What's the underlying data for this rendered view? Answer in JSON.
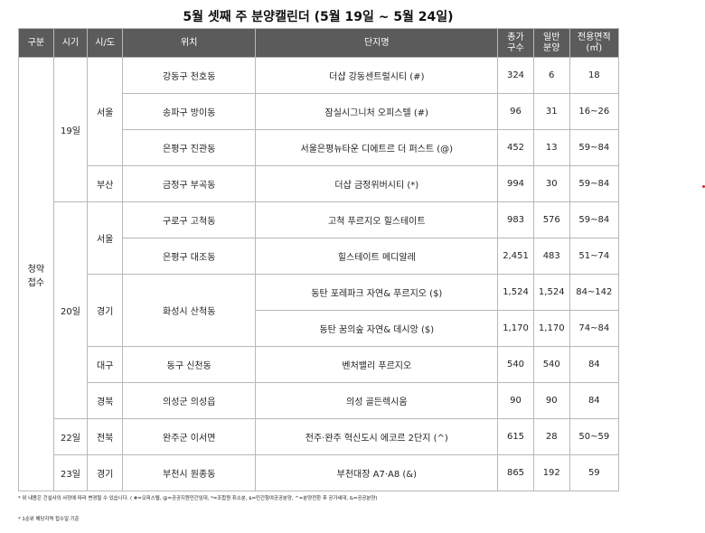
{
  "title": "5월 셋째 주 분양캘린더 (5월 19일 ~ 5월 24일)",
  "headers": {
    "category": "구분",
    "timing": "시기",
    "region": "시/도",
    "location": "위치",
    "complex": "단지명",
    "total_units": [
      "총가",
      "구수"
    ],
    "general_sale": [
      "일반",
      "분양"
    ],
    "area": [
      "전용면적",
      "(㎡)"
    ]
  },
  "category_label": [
    "청약",
    "접수"
  ],
  "timings": [
    "19일",
    "20일",
    "22일",
    "23일"
  ],
  "regions": [
    "서울",
    "부산",
    "서울",
    "경기",
    "대구",
    "경북",
    "전북",
    "경기"
  ],
  "locations": [
    "강동구 천호동",
    "송파구 방이동",
    "은평구 진관동",
    "금정구 부곡동",
    "구로구 고척동",
    "은평구 대조동",
    "화성시 산척동",
    "동구 신천동",
    "의성군 의성읍",
    "완주군 이서면",
    "부천시 원종동"
  ],
  "rows": [
    {
      "complex": "더샵 강동센트럴시티 (#)",
      "total": "324",
      "general": "6",
      "area": "18"
    },
    {
      "complex": "잠실시그니처 오피스텔 (#)",
      "total": "96",
      "general": "31",
      "area": "16~26"
    },
    {
      "complex": "서울은평뉴타운 디에트르 더 퍼스트 (@)",
      "total": "452",
      "general": "13",
      "area": "59~84"
    },
    {
      "complex": "더샵 금정위버시티 (*)",
      "total": "994",
      "general": "30",
      "area": "59~84"
    },
    {
      "complex": "고척 푸르지오 힐스테이트",
      "total": "983",
      "general": "576",
      "area": "59~84"
    },
    {
      "complex": "힐스테이트 메디알레",
      "total": "2,451",
      "general": "483",
      "area": "51~74"
    },
    {
      "complex": "동탄 포레파크 자연& 푸르지오 ($)",
      "total": "1,524",
      "general": "1,524",
      "area": "84~142"
    },
    {
      "complex": "동탄 꿈의숲 자연& 데시앙 ($)",
      "total": "1,170",
      "general": "1,170",
      "area": "74~84"
    },
    {
      "complex": "벤처밸리 푸르지오",
      "total": "540",
      "general": "540",
      "area": "84"
    },
    {
      "complex": "의성 골든렉시움",
      "total": "90",
      "general": "90",
      "area": "84"
    },
    {
      "complex": "전주·완주 혁신도시 에코르 2단지 (^)",
      "total": "615",
      "general": "28",
      "area": "50~59"
    },
    {
      "complex": "부천대장 A7·A8 (&)",
      "total": "865",
      "general": "192",
      "area": "59"
    }
  ],
  "notes": [
    "* 위 내용은 건설사의 사정에 따라 변경될 수 있습니다. ( #=오피스텔, @=공공지원민간임대, *=조합원 취소분, $=민간참여공공분양, ^=분양전환 후 공가세대, &=공공분양)",
    "* 1순위 해당지역 접수일 기준"
  ],
  "colors": {
    "header_bg": "#5b5b5b",
    "header_text": "#ffffff",
    "border": "#b8b8b8"
  }
}
